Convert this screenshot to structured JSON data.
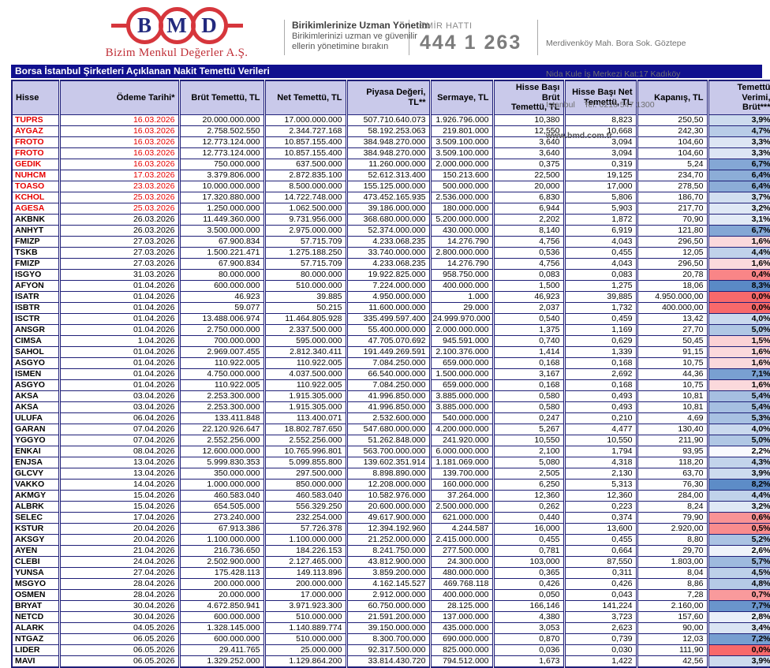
{
  "header": {
    "logo": {
      "letters": [
        "B",
        "M",
        "D"
      ],
      "company": "Bizim Menkul Değerler A.Ş."
    },
    "slogan": {
      "title": "Birikimlerinize Uzman Yönetim",
      "line1": "Birikimlerinizi uzman ve güvenilir",
      "line2": "ellerin yönetimine bırakın"
    },
    "order_line": {
      "label": "EMİR HATTI",
      "number": "444 1 263"
    },
    "address": {
      "line1": "Merdivenköy Mah. Bora Sok. Göztepe",
      "line2": "Nida Kule İş Merkezi Kat:17 Kadıköy",
      "line3": "İstanbul    Tel: 0216 547 1300",
      "website": "www.bmd.com.tr"
    }
  },
  "table": {
    "title": "Borsa İstanbul Şirketleri Açıklanan Nakit Temettü Verileri",
    "columns": [
      {
        "label": "Hisse",
        "align": "left"
      },
      {
        "label": "Ödeme Tarihi*"
      },
      {
        "label": "Brüt Temettü, TL"
      },
      {
        "label": "Net Temettü, TL"
      },
      {
        "label": "Piyasa Değeri, TL**"
      },
      {
        "label": "Sermaye, TL"
      },
      {
        "label": "Hisse Başı Brüt\nTemettü, TL"
      },
      {
        "label": "Hisse Başı Net\nTemettü, TL"
      },
      {
        "label": "Kapanış, TL"
      },
      {
        "label": "Temettü Verimi,\nBrüt***"
      }
    ],
    "rows": [
      {
        "ticker": "TUPRS",
        "date": "16.03.2026",
        "gross": "20.000.000.000",
        "net": "17.000.000.000",
        "mcap": "507.710.640.073",
        "capital": "1.926.796.000",
        "gross_ps": "10,380",
        "net_ps": "8,823",
        "close": "250,50",
        "yield": "3,9%",
        "red": true
      },
      {
        "ticker": "AYGAZ",
        "date": "16.03.2026",
        "gross": "2.758.502.550",
        "net": "2.344.727.168",
        "mcap": "58.192.253.063",
        "capital": "219.801.000",
        "gross_ps": "12,550",
        "net_ps": "10,668",
        "close": "242,30",
        "yield": "4,7%",
        "red": true
      },
      {
        "ticker": "FROTO",
        "date": "16.03.2026",
        "gross": "12.773.124.000",
        "net": "10.857.155.400",
        "mcap": "384.948.270.000",
        "capital": "3.509.100.000",
        "gross_ps": "3,640",
        "net_ps": "3,094",
        "close": "104,60",
        "yield": "3,3%",
        "red": true
      },
      {
        "ticker": "FROTO",
        "date": "16.03.2026",
        "gross": "12.773.124.000",
        "net": "10.857.155.400",
        "mcap": "384.948.270.000",
        "capital": "3.509.100.000",
        "gross_ps": "3,640",
        "net_ps": "3,094",
        "close": "104,60",
        "yield": "3,3%",
        "red": true
      },
      {
        "ticker": "GEDIK",
        "date": "16.03.2026",
        "gross": "750.000.000",
        "net": "637.500.000",
        "mcap": "11.260.000.000",
        "capital": "2.000.000.000",
        "gross_ps": "0,375",
        "net_ps": "0,319",
        "close": "5,24",
        "yield": "6,7%",
        "red": true
      },
      {
        "ticker": "NUHCM",
        "date": "17.03.2026",
        "gross": "3.379.806.000",
        "net": "2.872.835.100",
        "mcap": "52.612.313.400",
        "capital": "150.213.600",
        "gross_ps": "22,500",
        "net_ps": "19,125",
        "close": "234,70",
        "yield": "6,4%",
        "red": true
      },
      {
        "ticker": "TOASO",
        "date": "23.03.2026",
        "gross": "10.000.000.000",
        "net": "8.500.000.000",
        "mcap": "155.125.000.000",
        "capital": "500.000.000",
        "gross_ps": "20,000",
        "net_ps": "17,000",
        "close": "278,50",
        "yield": "6,4%",
        "red": true
      },
      {
        "ticker": "KCHOL",
        "date": "25.03.2026",
        "gross": "17.320.880.000",
        "net": "14.722.748.000",
        "mcap": "473.452.165.935",
        "capital": "2.536.000.000",
        "gross_ps": "6,830",
        "net_ps": "5,806",
        "close": "186,70",
        "yield": "3,7%",
        "red": true
      },
      {
        "ticker": "AGESA",
        "date": "25.03.2026",
        "gross": "1.250.000.000",
        "net": "1.062.500.000",
        "mcap": "39.186.000.000",
        "capital": "180.000.000",
        "gross_ps": "6,944",
        "net_ps": "5,903",
        "close": "217,70",
        "yield": "3,2%",
        "red": true
      },
      {
        "ticker": "AKBNK",
        "date": "26.03.2026",
        "gross": "11.449.360.000",
        "net": "9.731.956.000",
        "mcap": "368.680.000.000",
        "capital": "5.200.000.000",
        "gross_ps": "2,202",
        "net_ps": "1,872",
        "close": "70,90",
        "yield": "3,1%",
        "red": false
      },
      {
        "ticker": "ANHYT",
        "date": "26.03.2026",
        "gross": "3.500.000.000",
        "net": "2.975.000.000",
        "mcap": "52.374.000.000",
        "capital": "430.000.000",
        "gross_ps": "8,140",
        "net_ps": "6,919",
        "close": "121,80",
        "yield": "6,7%",
        "red": false
      },
      {
        "ticker": "FMIZP",
        "date": "27.03.2026",
        "gross": "67.900.834",
        "net": "57.715.709",
        "mcap": "4.233.068.235",
        "capital": "14.276.790",
        "gross_ps": "4,756",
        "net_ps": "4,043",
        "close": "296,50",
        "yield": "1,6%",
        "red": false
      },
      {
        "ticker": "TSKB",
        "date": "27.03.2026",
        "gross": "1.500.221.471",
        "net": "1.275.188.250",
        "mcap": "33.740.000.000",
        "capital": "2.800.000.000",
        "gross_ps": "0,536",
        "net_ps": "0,455",
        "close": "12,05",
        "yield": "4,4%",
        "red": false
      },
      {
        "ticker": "FMIZP",
        "date": "27.03.2026",
        "gross": "67.900.834",
        "net": "57.715.709",
        "mcap": "4.233.068.235",
        "capital": "14.276.790",
        "gross_ps": "4,756",
        "net_ps": "4,043",
        "close": "296,50",
        "yield": "1,6%",
        "red": false
      },
      {
        "ticker": "ISGYO",
        "date": "31.03.2026",
        "gross": "80.000.000",
        "net": "80.000.000",
        "mcap": "19.922.825.000",
        "capital": "958.750.000",
        "gross_ps": "0,083",
        "net_ps": "0,083",
        "close": "20,78",
        "yield": "0,4%",
        "red": false
      },
      {
        "ticker": "AFYON",
        "date": "01.04.2026",
        "gross": "600.000.000",
        "net": "510.000.000",
        "mcap": "7.224.000.000",
        "capital": "400.000.000",
        "gross_ps": "1,500",
        "net_ps": "1,275",
        "close": "18,06",
        "yield": "8,3%",
        "red": false
      },
      {
        "ticker": "ISATR",
        "date": "01.04.2026",
        "gross": "46.923",
        "net": "39.885",
        "mcap": "4.950.000.000",
        "capital": "1.000",
        "gross_ps": "46,923",
        "net_ps": "39,885",
        "close": "4.950.000,00",
        "yield": "0,0%",
        "red": false
      },
      {
        "ticker": "ISBTR",
        "date": "01.04.2026",
        "gross": "59.077",
        "net": "50.215",
        "mcap": "11.600.000.000",
        "capital": "29.000",
        "gross_ps": "2,037",
        "net_ps": "1,732",
        "close": "400.000,00",
        "yield": "0,0%",
        "red": false
      },
      {
        "ticker": "ISCTR",
        "date": "01.04.2026",
        "gross": "13.488.006.974",
        "net": "11.464.805.928",
        "mcap": "335.499.597.400",
        "capital": "24.999.970.000",
        "gross_ps": "0,540",
        "net_ps": "0,459",
        "close": "13,42",
        "yield": "4,0%",
        "red": false
      },
      {
        "ticker": "ANSGR",
        "date": "01.04.2026",
        "gross": "2.750.000.000",
        "net": "2.337.500.000",
        "mcap": "55.400.000.000",
        "capital": "2.000.000.000",
        "gross_ps": "1,375",
        "net_ps": "1,169",
        "close": "27,70",
        "yield": "5,0%",
        "red": false
      },
      {
        "ticker": "CIMSA",
        "date": "1.04.2026",
        "gross": "700.000.000",
        "net": "595.000.000",
        "mcap": "47.705.070.692",
        "capital": "945.591.000",
        "gross_ps": "0,740",
        "net_ps": "0,629",
        "close": "50,45",
        "yield": "1,5%",
        "red": false
      },
      {
        "ticker": "SAHOL",
        "date": "01.04.2026",
        "gross": "2.969.007.455",
        "net": "2.812.340.411",
        "mcap": "191.449.269.591",
        "capital": "2.100.376.000",
        "gross_ps": "1,414",
        "net_ps": "1,339",
        "close": "91,15",
        "yield": "1,6%",
        "red": false
      },
      {
        "ticker": "ASGYO",
        "date": "01.04.2026",
        "gross": "110.922.005",
        "net": "110.922.005",
        "mcap": "7.084.250.000",
        "capital": "659.000.000",
        "gross_ps": "0,168",
        "net_ps": "0,168",
        "close": "10,75",
        "yield": "1,6%",
        "red": false
      },
      {
        "ticker": "ISMEN",
        "date": "01.04.2026",
        "gross": "4.750.000.000",
        "net": "4.037.500.000",
        "mcap": "66.540.000.000",
        "capital": "1.500.000.000",
        "gross_ps": "3,167",
        "net_ps": "2,692",
        "close": "44,36",
        "yield": "7,1%",
        "red": false
      },
      {
        "ticker": "ASGYO",
        "date": "01.04.2026",
        "gross": "110.922.005",
        "net": "110.922.005",
        "mcap": "7.084.250.000",
        "capital": "659.000.000",
        "gross_ps": "0,168",
        "net_ps": "0,168",
        "close": "10,75",
        "yield": "1,6%",
        "red": false
      },
      {
        "ticker": "AKSA",
        "date": "03.04.2026",
        "gross": "2.253.300.000",
        "net": "1.915.305.000",
        "mcap": "41.996.850.000",
        "capital": "3.885.000.000",
        "gross_ps": "0,580",
        "net_ps": "0,493",
        "close": "10,81",
        "yield": "5,4%",
        "red": false
      },
      {
        "ticker": "AKSA",
        "date": "03.04.2026",
        "gross": "2.253.300.000",
        "net": "1.915.305.000",
        "mcap": "41.996.850.000",
        "capital": "3.885.000.000",
        "gross_ps": "0,580",
        "net_ps": "0,493",
        "close": "10,81",
        "yield": "5,4%",
        "red": false
      },
      {
        "ticker": "ULUFA",
        "date": "06.04.2026",
        "gross": "133.411.848",
        "net": "113.400.071",
        "mcap": "2.532.600.000",
        "capital": "540.000.000",
        "gross_ps": "0,247",
        "net_ps": "0,210",
        "close": "4,69",
        "yield": "5,3%",
        "red": false
      },
      {
        "ticker": "GARAN",
        "date": "07.04.2026",
        "gross": "22.120.926.647",
        "net": "18.802.787.650",
        "mcap": "547.680.000.000",
        "capital": "4.200.000.000",
        "gross_ps": "5,267",
        "net_ps": "4,477",
        "close": "130,40",
        "yield": "4,0%",
        "red": false
      },
      {
        "ticker": "YGGYO",
        "date": "07.04.2026",
        "gross": "2.552.256.000",
        "net": "2.552.256.000",
        "mcap": "51.262.848.000",
        "capital": "241.920.000",
        "gross_ps": "10,550",
        "net_ps": "10,550",
        "close": "211,90",
        "yield": "5,0%",
        "red": false
      },
      {
        "ticker": "ENKAI",
        "date": "08.04.2026",
        "gross": "12.600.000.000",
        "net": "10.765.996.801",
        "mcap": "563.700.000.000",
        "capital": "6.000.000.000",
        "gross_ps": "2,100",
        "net_ps": "1,794",
        "close": "93,95",
        "yield": "2,2%",
        "red": false
      },
      {
        "ticker": "ENJSA",
        "date": "13.04.2026",
        "gross": "5.999.830.353",
        "net": "5.099.855.800",
        "mcap": "139.602.351.914",
        "capital": "1.181.069.000",
        "gross_ps": "5,080",
        "net_ps": "4,318",
        "close": "118,20",
        "yield": "4,3%",
        "red": false
      },
      {
        "ticker": "GLCVY",
        "date": "13.04.2026",
        "gross": "350.000.000",
        "net": "297.500.000",
        "mcap": "8.898.890.000",
        "capital": "139.700.000",
        "gross_ps": "2,505",
        "net_ps": "2,130",
        "close": "63,70",
        "yield": "3,9%",
        "red": false
      },
      {
        "ticker": "VAKKO",
        "date": "14.04.2026",
        "gross": "1.000.000.000",
        "net": "850.000.000",
        "mcap": "12.208.000.000",
        "capital": "160.000.000",
        "gross_ps": "6,250",
        "net_ps": "5,313",
        "close": "76,30",
        "yield": "8,2%",
        "red": false
      },
      {
        "ticker": "AKMGY",
        "date": "15.04.2026",
        "gross": "460.583.040",
        "net": "460.583.040",
        "mcap": "10.582.976.000",
        "capital": "37.264.000",
        "gross_ps": "12,360",
        "net_ps": "12,360",
        "close": "284,00",
        "yield": "4,4%",
        "red": false
      },
      {
        "ticker": "ALBRK",
        "date": "15.04.2026",
        "gross": "654.505.000",
        "net": "556.329.250",
        "mcap": "20.600.000.000",
        "capital": "2.500.000.000",
        "gross_ps": "0,262",
        "net_ps": "0,223",
        "close": "8,24",
        "yield": "3,2%",
        "red": false
      },
      {
        "ticker": "SELEC",
        "date": "17.04.2026",
        "gross": "273.240.000",
        "net": "232.254.000",
        "mcap": "49.617.900.000",
        "capital": "621.000.000",
        "gross_ps": "0,440",
        "net_ps": "0,374",
        "close": "79,90",
        "yield": "0,6%",
        "red": false
      },
      {
        "ticker": "KSTUR",
        "date": "20.04.2026",
        "gross": "67.913.386",
        "net": "57.726.378",
        "mcap": "12.394.192.960",
        "capital": "4.244.587",
        "gross_ps": "16,000",
        "net_ps": "13,600",
        "close": "2.920,00",
        "yield": "0,5%",
        "red": false
      },
      {
        "ticker": "AKSGY",
        "date": "20.04.2026",
        "gross": "1.100.000.000",
        "net": "1.100.000.000",
        "mcap": "21.252.000.000",
        "capital": "2.415.000.000",
        "gross_ps": "0,455",
        "net_ps": "0,455",
        "close": "8,80",
        "yield": "5,2%",
        "red": false
      },
      {
        "ticker": "AYEN",
        "date": "21.04.2026",
        "gross": "216.736.650",
        "net": "184.226.153",
        "mcap": "8.241.750.000",
        "capital": "277.500.000",
        "gross_ps": "0,781",
        "net_ps": "0,664",
        "close": "29,70",
        "yield": "2,6%",
        "red": false
      },
      {
        "ticker": "CLEBI",
        "date": "24.04.2026",
        "gross": "2.502.900.000",
        "net": "2.127.465.000",
        "mcap": "43.812.900.000",
        "capital": "24.300.000",
        "gross_ps": "103,000",
        "net_ps": "87,550",
        "close": "1.803,00",
        "yield": "5,7%",
        "red": false
      },
      {
        "ticker": "YUNSA",
        "date": "27.04.2026",
        "gross": "175.428.113",
        "net": "149.113.896",
        "mcap": "3.859.200.000",
        "capital": "480.000.000",
        "gross_ps": "0,365",
        "net_ps": "0,311",
        "close": "8,04",
        "yield": "4,5%",
        "red": false
      },
      {
        "ticker": "MSGYO",
        "date": "28.04.2026",
        "gross": "200.000.000",
        "net": "200.000.000",
        "mcap": "4.162.145.527",
        "capital": "469.768.118",
        "gross_ps": "0,426",
        "net_ps": "0,426",
        "close": "8,86",
        "yield": "4,8%",
        "red": false
      },
      {
        "ticker": "OSMEN",
        "date": "28.04.2026",
        "gross": "20.000.000",
        "net": "17.000.000",
        "mcap": "2.912.000.000",
        "capital": "400.000.000",
        "gross_ps": "0,050",
        "net_ps": "0,043",
        "close": "7,28",
        "yield": "0,7%",
        "red": false
      },
      {
        "ticker": "BRYAT",
        "date": "30.04.2026",
        "gross": "4.672.850.941",
        "net": "3.971.923.300",
        "mcap": "60.750.000.000",
        "capital": "28.125.000",
        "gross_ps": "166,146",
        "net_ps": "141,224",
        "close": "2.160,00",
        "yield": "7,7%",
        "red": false
      },
      {
        "ticker": "NETCD",
        "date": "30.04.2026",
        "gross": "600.000.000",
        "net": "510.000.000",
        "mcap": "21.591.200.000",
        "capital": "137.000.000",
        "gross_ps": "4,380",
        "net_ps": "3,723",
        "close": "157,60",
        "yield": "2,8%",
        "red": false
      },
      {
        "ticker": "ALARK",
        "date": "04.05.2026",
        "gross": "1.328.145.000",
        "net": "1.140.889.774",
        "mcap": "39.150.000.000",
        "capital": "435.000.000",
        "gross_ps": "3,053",
        "net_ps": "2,623",
        "close": "90,00",
        "yield": "3,4%",
        "red": false
      },
      {
        "ticker": "NTGAZ",
        "date": "06.05.2026",
        "gross": "600.000.000",
        "net": "510.000.000",
        "mcap": "8.300.700.000",
        "capital": "690.000.000",
        "gross_ps": "0,870",
        "net_ps": "0,739",
        "close": "12,03",
        "yield": "7,2%",
        "red": false
      },
      {
        "ticker": "LIDER",
        "date": "06.05.2026",
        "gross": "29.411.765",
        "net": "25.000.000",
        "mcap": "92.317.500.000",
        "capital": "825.000.000",
        "gross_ps": "0,036",
        "net_ps": "0,030",
        "close": "111,90",
        "yield": "0,0%",
        "red": false
      },
      {
        "ticker": "MAVI",
        "date": "06.05.2026",
        "gross": "1.329.252.000",
        "net": "1.129.864.200",
        "mcap": "33.814.430.720",
        "capital": "794.512.000",
        "gross_ps": "1,673",
        "net_ps": "1,422",
        "close": "42,56",
        "yield": "3,9%",
        "red": false
      }
    ]
  },
  "colors": {
    "banner_bg": "#10108E",
    "header_bg": "#C9C9EA",
    "border": "#1F1F78",
    "highlight_text": "#E60000",
    "logo_red": "#D6363C",
    "logo_navy": "#232A7E",
    "yield_scale": {
      "low": "#F8696B",
      "mid": "#FCFCFF",
      "high": "#5A8AC6",
      "min": 0,
      "midpoint": 2.1,
      "max": 8.3
    }
  }
}
